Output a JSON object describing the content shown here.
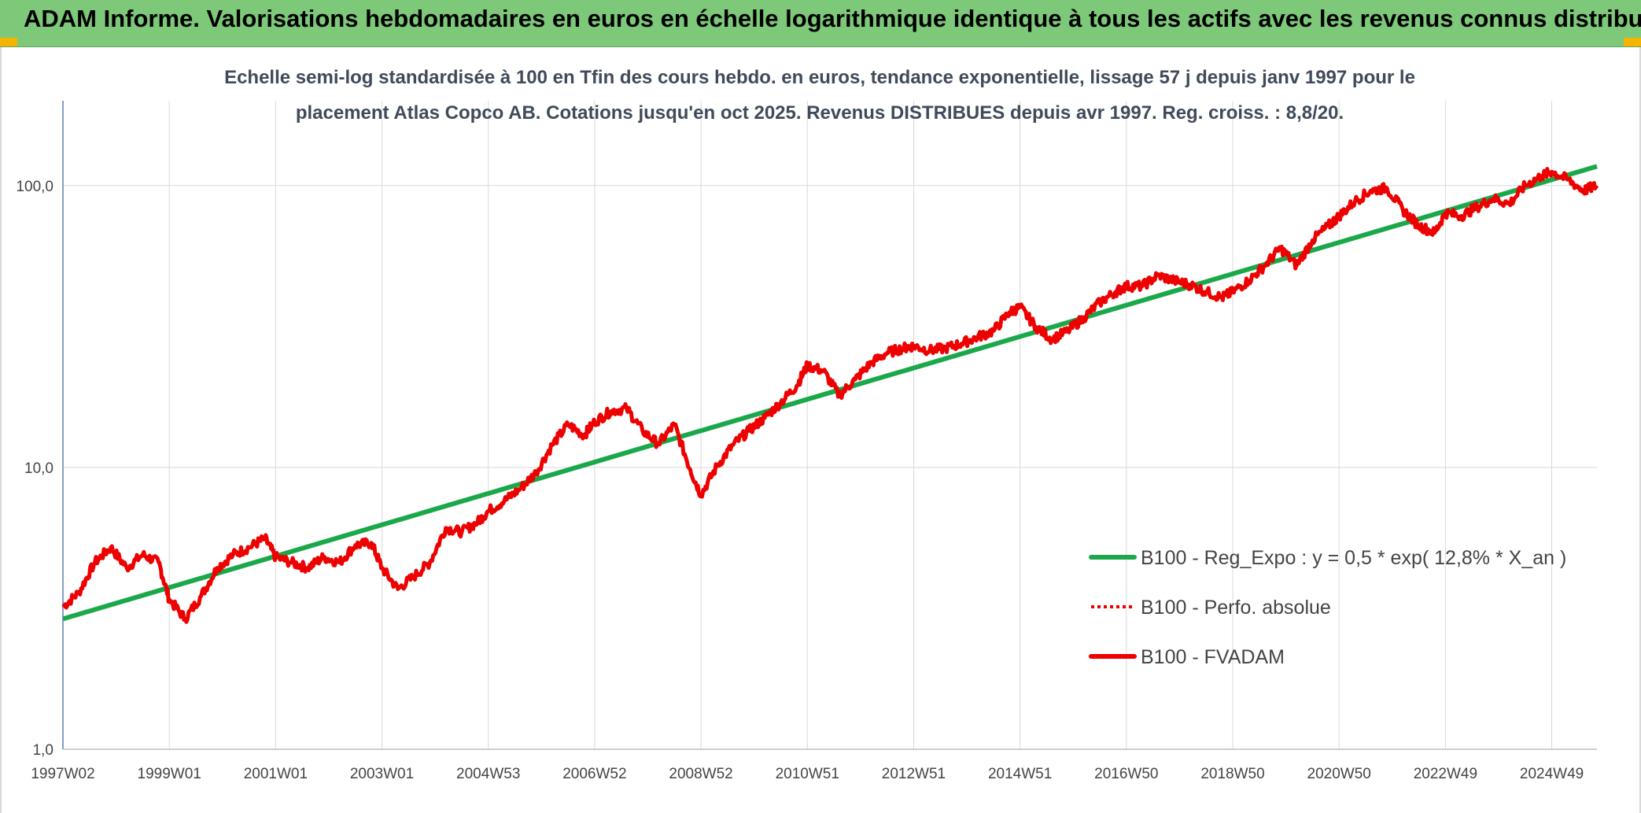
{
  "banner": {
    "title": "ADAM Informe. Valorisations hebdomadaires en euros en échelle logarithmique identique à tous les actifs avec les revenus connus distribués"
  },
  "colors": {
    "banner_bg": "#7ec87a",
    "trend": "#1aa84a",
    "fvadam": "#ee0000",
    "perfo": "#ee0000",
    "grid": "#d9d9d9",
    "corner": "#f4b400"
  },
  "chart_data": {
    "type": "line",
    "title_lines": [
      "Echelle semi-log standardisée à 100 en Tfin des cours hebdo. en euros, tendance exponentielle, lissage 57 j depuis janv 1997 pour le",
      "placement Atlas Copco AB. Cotations jusqu'en oct 2025. Revenus DISTRIBUES depuis avr 1997. Reg. croiss. : 8,8/20."
    ],
    "y_scale": "log",
    "ylim": [
      1,
      200
    ],
    "xlim": [
      1997.0,
      2025.85
    ],
    "y_ticks": [
      {
        "value": 1,
        "label": "1,0"
      },
      {
        "value": 10,
        "label": "10,0"
      },
      {
        "value": 100,
        "label": "100,0"
      }
    ],
    "x_ticks": [
      {
        "value": 1997.0,
        "label": "1997W02"
      },
      {
        "value": 1999.0,
        "label": "1999W01"
      },
      {
        "value": 2001.0,
        "label": "2001W01"
      },
      {
        "value": 2003.0,
        "label": "2003W01"
      },
      {
        "value": 2005.0,
        "label": "2004W53"
      },
      {
        "value": 2007.0,
        "label": "2006W52"
      },
      {
        "value": 2009.0,
        "label": "2008W52"
      },
      {
        "value": 2011.0,
        "label": "2010W51"
      },
      {
        "value": 2013.0,
        "label": "2012W51"
      },
      {
        "value": 2015.0,
        "label": "2014W51"
      },
      {
        "value": 2017.0,
        "label": "2016W50"
      },
      {
        "value": 2019.0,
        "label": "2018W50"
      },
      {
        "value": 2021.0,
        "label": "2020W50"
      },
      {
        "value": 2023.0,
        "label": "2022W49"
      },
      {
        "value": 2025.0,
        "label": "2024W49"
      }
    ],
    "legend_position": "right-middle",
    "series": [
      {
        "name": "B100 - Reg_Expo : y = 0,5 * exp( 12,8% *  X_an )",
        "style": "solid-thick",
        "color": "#1aa84a",
        "x": [
          1997.0,
          2025.85
        ],
        "y": [
          2.9,
          117
        ]
      },
      {
        "name": "B100 - Perfo. absolue",
        "style": "dotted",
        "color": "#ee0000",
        "x": [],
        "y": []
      },
      {
        "name": "B100 - FVADAM",
        "style": "solid",
        "color": "#ee0000",
        "x": [
          1997.0,
          1997.3,
          1997.6,
          1997.9,
          1998.2,
          1998.5,
          1998.8,
          1999.0,
          1999.3,
          1999.6,
          1999.9,
          2000.2,
          2000.5,
          2000.8,
          2001.0,
          2001.3,
          2001.6,
          2001.9,
          2002.2,
          2002.5,
          2002.8,
          2003.0,
          2003.3,
          2003.6,
          2003.9,
          2004.2,
          2004.5,
          2004.8,
          2005.0,
          2005.3,
          2005.6,
          2005.9,
          2006.2,
          2006.5,
          2006.8,
          2007.0,
          2007.3,
          2007.6,
          2007.9,
          2008.2,
          2008.5,
          2008.8,
          2009.0,
          2009.3,
          2009.6,
          2009.9,
          2010.2,
          2010.5,
          2010.8,
          2011.0,
          2011.3,
          2011.6,
          2011.9,
          2012.2,
          2012.5,
          2012.8,
          2013.0,
          2013.3,
          2013.6,
          2013.9,
          2014.2,
          2014.5,
          2014.8,
          2015.0,
          2015.3,
          2015.6,
          2015.9,
          2016.2,
          2016.5,
          2016.8,
          2017.0,
          2017.3,
          2017.6,
          2017.9,
          2018.2,
          2018.5,
          2018.8,
          2019.0,
          2019.3,
          2019.6,
          2019.9,
          2020.2,
          2020.5,
          2020.8,
          2021.0,
          2021.3,
          2021.6,
          2021.9,
          2022.2,
          2022.5,
          2022.8,
          2023.0,
          2023.3,
          2023.6,
          2023.9,
          2024.2,
          2024.5,
          2024.8,
          2025.0,
          2025.3,
          2025.6,
          2025.85
        ],
        "y": [
          3.2,
          3.6,
          4.6,
          5.2,
          4.4,
          4.9,
          4.6,
          3.4,
          2.9,
          3.5,
          4.4,
          4.9,
          5.2,
          5.6,
          4.8,
          4.6,
          4.4,
          4.8,
          4.6,
          5.3,
          5.4,
          4.4,
          3.7,
          4.1,
          4.6,
          6.1,
          5.9,
          6.4,
          7.0,
          7.6,
          8.4,
          9.6,
          12.0,
          14.2,
          13.0,
          14.5,
          15.8,
          16.2,
          13.5,
          12.1,
          14.2,
          9.8,
          8.0,
          10.1,
          12.0,
          13.5,
          15.0,
          17.0,
          19.5,
          23.0,
          22.0,
          18.0,
          20.5,
          23.5,
          25.5,
          26.5,
          27.0,
          26.0,
          26.5,
          27.5,
          29.0,
          30.5,
          35.5,
          37.0,
          31.5,
          28.5,
          30.5,
          34.0,
          38.5,
          42.0,
          44.0,
          44.0,
          48.0,
          46.0,
          44.5,
          42.0,
          40.0,
          42.0,
          46.0,
          52.0,
          60.0,
          52.0,
          64.0,
          72.0,
          78.0,
          88.0,
          96.0,
          98.0,
          82.0,
          72.0,
          68.0,
          80.0,
          78.0,
          84.0,
          90.0,
          86.0,
          100.0,
          108.0,
          112.0,
          105.0,
          96.0,
          100.0
        ]
      }
    ]
  }
}
